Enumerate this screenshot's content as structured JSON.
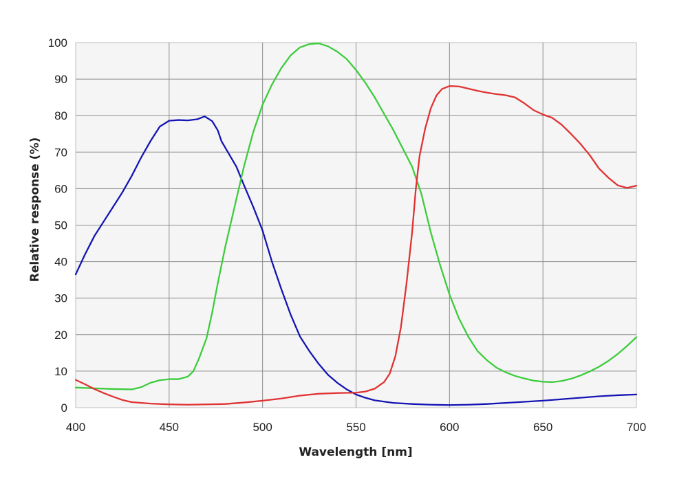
{
  "chart_data": {
    "type": "line",
    "title": "",
    "xlabel": "Wavelength [nm]",
    "ylabel": "Relative response  (%)",
    "xlim": [
      400,
      700
    ],
    "ylim": [
      0,
      100
    ],
    "x_ticks": [
      400,
      450,
      500,
      550,
      600,
      650,
      700
    ],
    "y_ticks": [
      0,
      10,
      20,
      30,
      40,
      50,
      60,
      70,
      80,
      90,
      100
    ],
    "grid": true,
    "legend": "none",
    "series": [
      {
        "color": "#1414b4",
        "points": [
          [
            400,
            36.5
          ],
          [
            405,
            42
          ],
          [
            410,
            47
          ],
          [
            415,
            51
          ],
          [
            420,
            55
          ],
          [
            425,
            59
          ],
          [
            430,
            63.5
          ],
          [
            435,
            68.5
          ],
          [
            440,
            73
          ],
          [
            445,
            77
          ],
          [
            450,
            78.6
          ],
          [
            455,
            78.8
          ],
          [
            460,
            78.7
          ],
          [
            465,
            79
          ],
          [
            469,
            79.8
          ],
          [
            473,
            78.5
          ],
          [
            476,
            76
          ],
          [
            478,
            73
          ],
          [
            482,
            69.5
          ],
          [
            486,
            66
          ],
          [
            490,
            61
          ],
          [
            495,
            55
          ],
          [
            500,
            48.5
          ],
          [
            505,
            40
          ],
          [
            510,
            32.5
          ],
          [
            515,
            25.5
          ],
          [
            520,
            19.5
          ],
          [
            525,
            15.5
          ],
          [
            530,
            12
          ],
          [
            535,
            9
          ],
          [
            540,
            6.8
          ],
          [
            545,
            5
          ],
          [
            550,
            3.6
          ],
          [
            555,
            2.7
          ],
          [
            560,
            2
          ],
          [
            570,
            1.3
          ],
          [
            580,
            1
          ],
          [
            590,
            0.8
          ],
          [
            600,
            0.7
          ],
          [
            610,
            0.8
          ],
          [
            620,
            1
          ],
          [
            630,
            1.3
          ],
          [
            640,
            1.6
          ],
          [
            650,
            1.9
          ],
          [
            660,
            2.3
          ],
          [
            670,
            2.7
          ],
          [
            680,
            3.1
          ],
          [
            690,
            3.4
          ],
          [
            700,
            3.6
          ]
        ]
      },
      {
        "color": "#3ccc3c",
        "points": [
          [
            400,
            5.5
          ],
          [
            410,
            5.3
          ],
          [
            420,
            5.1
          ],
          [
            430,
            5
          ],
          [
            435,
            5.6
          ],
          [
            440,
            6.8
          ],
          [
            445,
            7.5
          ],
          [
            450,
            7.8
          ],
          [
            455,
            7.8
          ],
          [
            460,
            8.5
          ],
          [
            463,
            10
          ],
          [
            466,
            13.5
          ],
          [
            470,
            19
          ],
          [
            473,
            26
          ],
          [
            476,
            34
          ],
          [
            480,
            44
          ],
          [
            485,
            55
          ],
          [
            490,
            66
          ],
          [
            495,
            75.5
          ],
          [
            500,
            83
          ],
          [
            505,
            88.5
          ],
          [
            510,
            93
          ],
          [
            515,
            96.5
          ],
          [
            520,
            98.7
          ],
          [
            525,
            99.6
          ],
          [
            530,
            99.8
          ],
          [
            535,
            99
          ],
          [
            540,
            97.5
          ],
          [
            545,
            95.5
          ],
          [
            550,
            92.5
          ],
          [
            555,
            89
          ],
          [
            560,
            85
          ],
          [
            565,
            80.5
          ],
          [
            570,
            76
          ],
          [
            575,
            71
          ],
          [
            580,
            66
          ],
          [
            585,
            58.5
          ],
          [
            590,
            48
          ],
          [
            595,
            39
          ],
          [
            600,
            31
          ],
          [
            605,
            24.5
          ],
          [
            610,
            19.5
          ],
          [
            615,
            15.5
          ],
          [
            620,
            13
          ],
          [
            625,
            11
          ],
          [
            630,
            9.7
          ],
          [
            635,
            8.7
          ],
          [
            640,
            8
          ],
          [
            645,
            7.4
          ],
          [
            650,
            7.1
          ],
          [
            655,
            7
          ],
          [
            660,
            7.3
          ],
          [
            665,
            7.9
          ],
          [
            670,
            8.8
          ],
          [
            675,
            9.9
          ],
          [
            680,
            11.2
          ],
          [
            685,
            12.8
          ],
          [
            690,
            14.7
          ],
          [
            695,
            16.9
          ],
          [
            700,
            19.3
          ]
        ]
      },
      {
        "color": "#e03232",
        "points": [
          [
            400,
            7.6
          ],
          [
            405,
            6.4
          ],
          [
            410,
            5.1
          ],
          [
            415,
            4
          ],
          [
            420,
            3
          ],
          [
            425,
            2.1
          ],
          [
            430,
            1.5
          ],
          [
            440,
            1.1
          ],
          [
            450,
            0.9
          ],
          [
            460,
            0.8
          ],
          [
            470,
            0.9
          ],
          [
            480,
            1
          ],
          [
            490,
            1.4
          ],
          [
            500,
            1.9
          ],
          [
            510,
            2.5
          ],
          [
            520,
            3.3
          ],
          [
            530,
            3.8
          ],
          [
            540,
            4
          ],
          [
            550,
            4.1
          ],
          [
            555,
            4.4
          ],
          [
            560,
            5.2
          ],
          [
            565,
            7
          ],
          [
            568,
            9.3
          ],
          [
            571,
            14
          ],
          [
            574,
            22
          ],
          [
            577,
            34
          ],
          [
            580,
            48
          ],
          [
            582,
            60
          ],
          [
            584,
            69
          ],
          [
            587,
            76.5
          ],
          [
            590,
            82
          ],
          [
            593,
            85.5
          ],
          [
            596,
            87.3
          ],
          [
            600,
            88.1
          ],
          [
            605,
            88
          ],
          [
            610,
            87.4
          ],
          [
            615,
            86.8
          ],
          [
            620,
            86.3
          ],
          [
            625,
            85.9
          ],
          [
            630,
            85.6
          ],
          [
            635,
            85
          ],
          [
            640,
            83.4
          ],
          [
            645,
            81.5
          ],
          [
            650,
            80.3
          ],
          [
            655,
            79.4
          ],
          [
            660,
            77.5
          ],
          [
            665,
            75
          ],
          [
            670,
            72.3
          ],
          [
            675,
            69.2
          ],
          [
            680,
            65.5
          ],
          [
            685,
            63
          ],
          [
            690,
            60.9
          ],
          [
            695,
            60.2
          ],
          [
            700,
            60.8
          ]
        ]
      }
    ]
  }
}
